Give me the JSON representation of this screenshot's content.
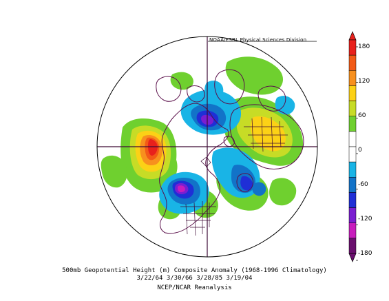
{
  "map": {
    "credit": "NOAA/ESRL Physical Sciences Division",
    "title": "500mb Geopotential Height (m) Composite Anomaly (1968-1996 Climatology)",
    "dates": "3/22/64 3/30/66 3/28/85 3/19/04",
    "source": "NCEP/NCAR Reanalysis",
    "projection": "north-polar-stereographic",
    "colors": {
      "coastline": "#5a0f4a",
      "land_outline": "#3d0a35"
    }
  },
  "colorbar": {
    "ticks": [
      "180",
      "120",
      "60",
      "0",
      "-60",
      "-120",
      "-180"
    ],
    "bins": [
      {
        "color": "#e8211c"
      },
      {
        "color": "#f25a17"
      },
      {
        "color": "#f7901e"
      },
      {
        "color": "#fcd116"
      },
      {
        "color": "#c7dc26"
      },
      {
        "color": "#6fd02f"
      },
      {
        "color": "#ffffff"
      },
      {
        "color": "#ffffff"
      },
      {
        "color": "#19b4e6"
      },
      {
        "color": "#1273c8"
      },
      {
        "color": "#1f2fd6"
      },
      {
        "color": "#7a1ed1"
      },
      {
        "color": "#c81dbd"
      },
      {
        "color": "#6a0f6e"
      }
    ]
  }
}
